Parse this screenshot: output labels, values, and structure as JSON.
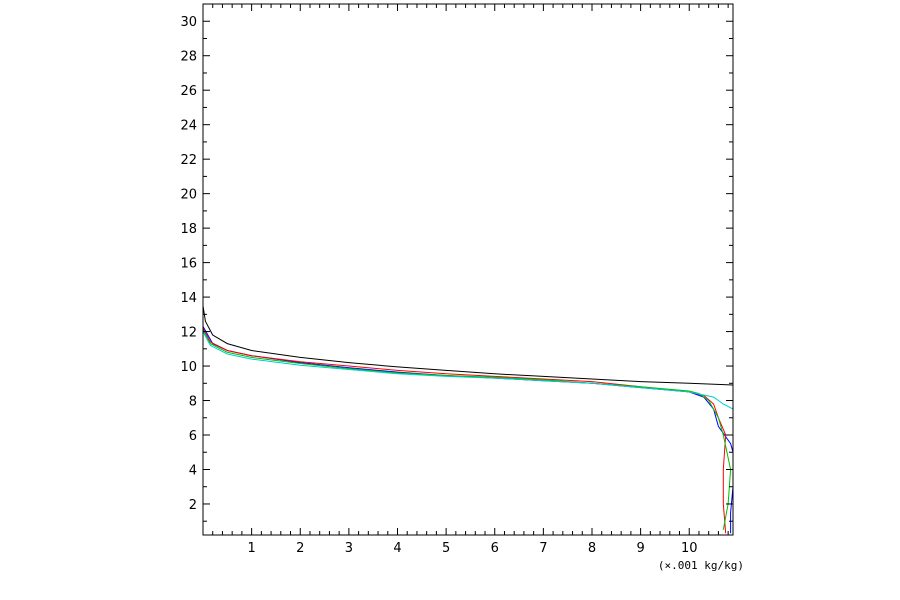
{
  "chart_data": {
    "type": "line",
    "title": "",
    "xlabel": "(×.001 kg/kg)",
    "ylabel": "",
    "xlim": [
      0,
      10.9
    ],
    "ylim": [
      0.2,
      31
    ],
    "x_ticks": [
      1,
      2,
      3,
      4,
      5,
      6,
      7,
      8,
      9,
      10
    ],
    "y_ticks": [
      2,
      4,
      6,
      8,
      10,
      12,
      14,
      16,
      18,
      20,
      22,
      24,
      26,
      28,
      30
    ],
    "grid": false,
    "legend": "none",
    "series": [
      {
        "color": "#000000",
        "points": [
          [
            10.9,
            8.9
          ],
          [
            10,
            9.0
          ],
          [
            9,
            9.1
          ],
          [
            8,
            9.25
          ],
          [
            7,
            9.4
          ],
          [
            6,
            9.55
          ],
          [
            5,
            9.75
          ],
          [
            4,
            9.95
          ],
          [
            3,
            10.2
          ],
          [
            2,
            10.5
          ],
          [
            1,
            10.9
          ],
          [
            0.5,
            11.3
          ],
          [
            0.2,
            11.8
          ],
          [
            0.05,
            12.6
          ],
          [
            0,
            13.5
          ],
          [
            0,
            31
          ]
        ]
      },
      {
        "color": "#0000ff",
        "points": [
          [
            10.85,
            0.3
          ],
          [
            10.85,
            1.5
          ],
          [
            10.9,
            3
          ],
          [
            10.9,
            5
          ],
          [
            10.85,
            5.5
          ],
          [
            10.6,
            6.5
          ],
          [
            10.5,
            7.5
          ],
          [
            10.3,
            8.2
          ],
          [
            10,
            8.5
          ],
          [
            9,
            8.75
          ],
          [
            8,
            9
          ],
          [
            7,
            9.15
          ],
          [
            6,
            9.3
          ],
          [
            5,
            9.45
          ],
          [
            4,
            9.65
          ],
          [
            3,
            9.9
          ],
          [
            2,
            10.2
          ],
          [
            1,
            10.6
          ],
          [
            0.5,
            10.9
          ],
          [
            0.2,
            11.3
          ],
          [
            0,
            12.3
          ]
        ]
      },
      {
        "color": "#ff0000",
        "points": [
          [
            10.75,
            0.3
          ],
          [
            10.7,
            2
          ],
          [
            10.7,
            4
          ],
          [
            10.75,
            6
          ],
          [
            10.6,
            7
          ],
          [
            10.5,
            7.8
          ],
          [
            10.3,
            8.3
          ],
          [
            10,
            8.5
          ],
          [
            9,
            8.8
          ],
          [
            8,
            9.1
          ],
          [
            7,
            9.25
          ],
          [
            6,
            9.4
          ],
          [
            5,
            9.55
          ],
          [
            4,
            9.75
          ],
          [
            3,
            10
          ],
          [
            2,
            10.25
          ],
          [
            1,
            10.6
          ],
          [
            0.5,
            10.9
          ],
          [
            0.15,
            11.4
          ],
          [
            0,
            12.2
          ]
        ]
      },
      {
        "color": "#00c000",
        "points": [
          [
            10.7,
            0.5
          ],
          [
            10.8,
            2
          ],
          [
            10.85,
            4
          ],
          [
            10.7,
            6
          ],
          [
            10.6,
            7
          ],
          [
            10.4,
            8
          ],
          [
            10.2,
            8.4
          ],
          [
            10,
            8.55
          ],
          [
            9,
            8.8
          ],
          [
            8,
            9.0
          ],
          [
            7,
            9.2
          ],
          [
            6,
            9.35
          ],
          [
            5,
            9.45
          ],
          [
            4,
            9.6
          ],
          [
            3,
            9.85
          ],
          [
            2,
            10.15
          ],
          [
            1,
            10.5
          ],
          [
            0.5,
            10.8
          ],
          [
            0.15,
            11.3
          ],
          [
            0,
            12.1
          ]
        ]
      },
      {
        "color": "#00cccc",
        "points": [
          [
            10.9,
            7.5
          ],
          [
            10.7,
            7.8
          ],
          [
            10.5,
            8.2
          ],
          [
            10,
            8.5
          ],
          [
            9,
            8.75
          ],
          [
            8,
            9.0
          ],
          [
            7,
            9.15
          ],
          [
            6,
            9.3
          ],
          [
            5,
            9.4
          ],
          [
            4,
            9.55
          ],
          [
            3,
            9.8
          ],
          [
            2,
            10.05
          ],
          [
            1,
            10.4
          ],
          [
            0.5,
            10.7
          ],
          [
            0.15,
            11.2
          ],
          [
            0,
            12.0
          ],
          [
            0,
            31
          ]
        ]
      }
    ]
  }
}
